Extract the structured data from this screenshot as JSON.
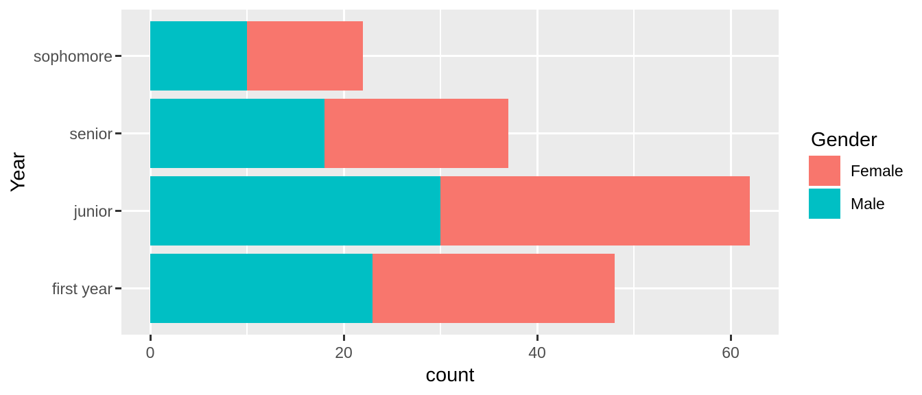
{
  "chart_data": {
    "type": "bar",
    "orientation": "horizontal",
    "stacked": true,
    "title": "",
    "xlabel": "count",
    "ylabel": "Year",
    "categories": [
      "sophomore",
      "senior",
      "junior",
      "first year"
    ],
    "series": [
      {
        "name": "Male",
        "color": "#00BFC4",
        "values": [
          10,
          18,
          30,
          23
        ]
      },
      {
        "name": "Female",
        "color": "#F8766D",
        "values": [
          12,
          19,
          32,
          25
        ]
      }
    ],
    "stack_totals": [
      22,
      37,
      62,
      48
    ],
    "x_axis": {
      "ticks": [
        0,
        20,
        40,
        60
      ],
      "minor_ticks": [
        10,
        30,
        50
      ],
      "range": [
        -3,
        65
      ]
    },
    "legend": {
      "title": "Gender",
      "position": "right",
      "entries": [
        {
          "label": "Female",
          "color": "#F8766D"
        },
        {
          "label": "Male",
          "color": "#00BFC4"
        }
      ]
    },
    "grid": true,
    "style": {
      "panel_background": "#EBEBEB",
      "gridline_color": "#FFFFFF",
      "axis_text_color": "#4D4D4D",
      "tick_mark_color": "#333333"
    }
  }
}
